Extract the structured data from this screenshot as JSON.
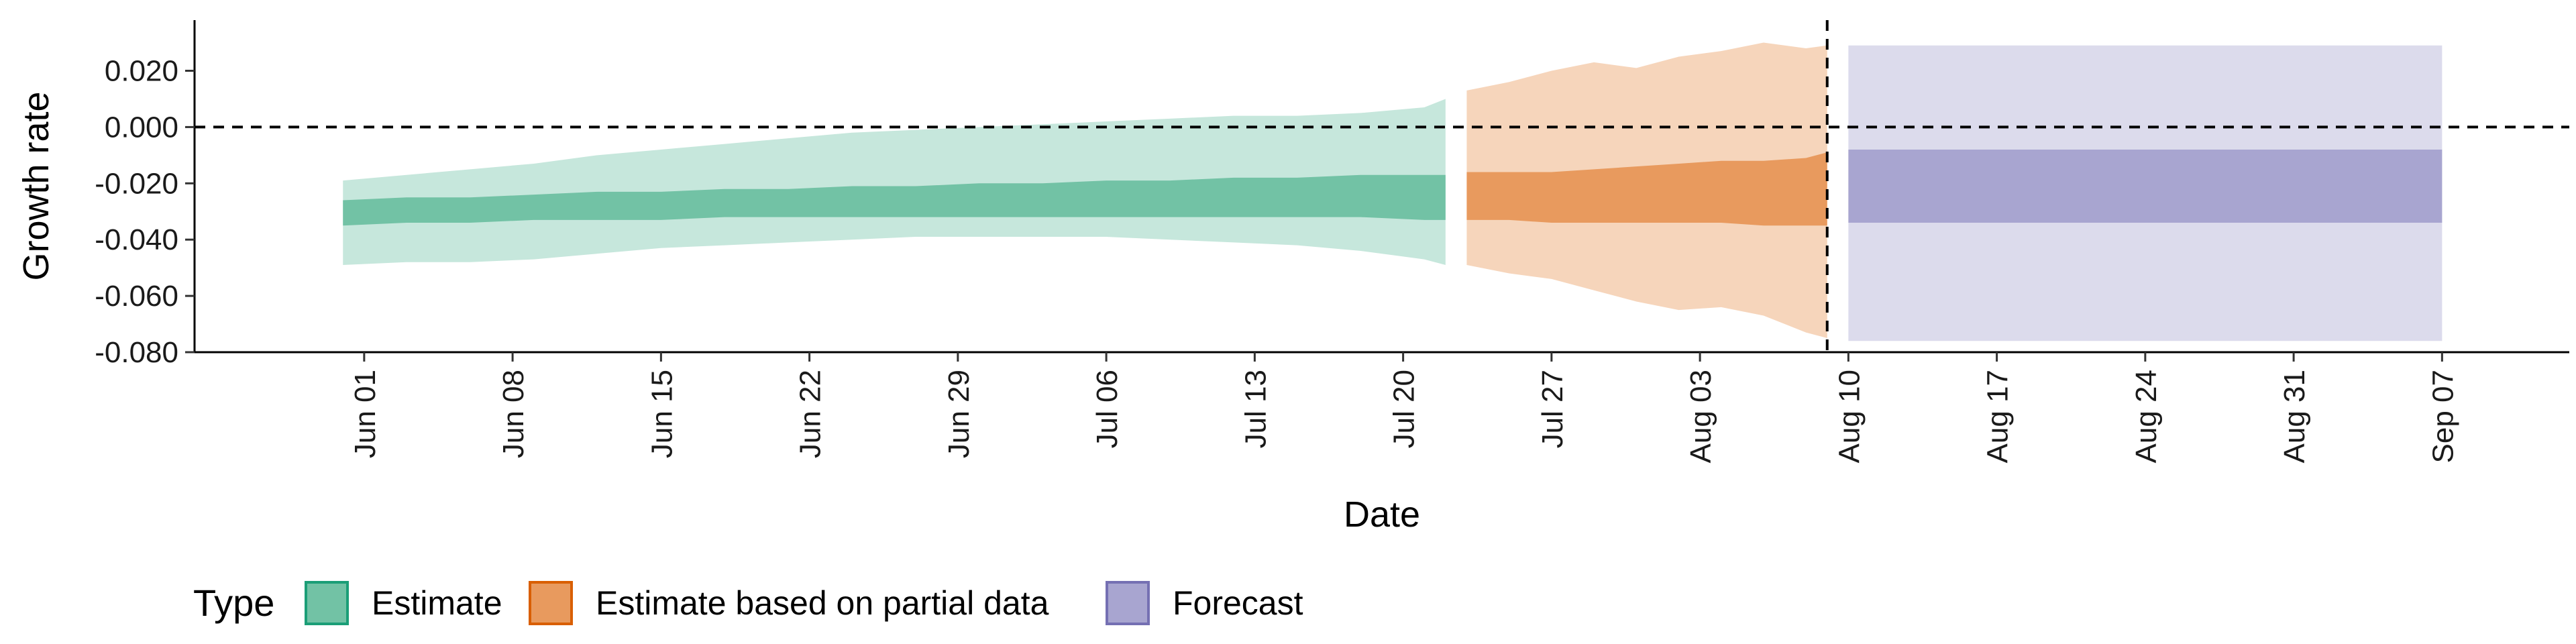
{
  "chart_data": {
    "type": "area",
    "title": "",
    "xlabel": "Date",
    "ylabel": "Growth rate",
    "xlim": [
      "2020-05-24",
      "2020-09-13"
    ],
    "ylim": [
      -0.08,
      0.038
    ],
    "x_ticks": [
      "2020-06-01",
      "2020-06-08",
      "2020-06-15",
      "2020-06-22",
      "2020-06-29",
      "2020-07-06",
      "2020-07-13",
      "2020-07-20",
      "2020-07-27",
      "2020-08-03",
      "2020-08-10",
      "2020-08-17",
      "2020-08-24",
      "2020-08-31",
      "2020-09-07"
    ],
    "x_tick_labels": [
      "Jun 01",
      "Jun 08",
      "Jun 15",
      "Jun 22",
      "Jun 29",
      "Jul 06",
      "Jul 13",
      "Jul 20",
      "Jul 27",
      "Aug 03",
      "Aug 10",
      "Aug 17",
      "Aug 24",
      "Aug 31",
      "Sep 07"
    ],
    "y_ticks": [
      0.02,
      0.0,
      -0.02,
      -0.04,
      -0.06,
      -0.08
    ],
    "y_tick_labels": [
      "0.020",
      "0.000",
      "-0.020",
      "-0.040",
      "-0.060",
      "-0.080"
    ],
    "reference_lines": [
      {
        "axis": "y",
        "value": 0.0,
        "style": "dashed"
      },
      {
        "axis": "x",
        "value": "2020-08-09",
        "style": "dashed"
      }
    ],
    "grid": false,
    "legend": {
      "title": "Type",
      "position": "bottom-left",
      "entries": [
        "Estimate",
        "Estimate based on partial data",
        "Forecast"
      ]
    },
    "series": [
      {
        "name": "Estimate",
        "outer_color": "#c6e7dc",
        "inner_color": "#72c2a5",
        "x": [
          "2020-05-31",
          "2020-06-03",
          "2020-06-06",
          "2020-06-09",
          "2020-06-12",
          "2020-06-15",
          "2020-06-18",
          "2020-06-21",
          "2020-06-24",
          "2020-06-27",
          "2020-06-30",
          "2020-07-03",
          "2020-07-06",
          "2020-07-09",
          "2020-07-12",
          "2020-07-15",
          "2020-07-18",
          "2020-07-21",
          "2020-07-22"
        ],
        "outer_low": [
          -0.049,
          -0.048,
          -0.048,
          -0.047,
          -0.045,
          -0.043,
          -0.042,
          -0.041,
          -0.04,
          -0.039,
          -0.039,
          -0.039,
          -0.039,
          -0.04,
          -0.041,
          -0.042,
          -0.044,
          -0.047,
          -0.049
        ],
        "inner_low": [
          -0.035,
          -0.034,
          -0.034,
          -0.033,
          -0.033,
          -0.033,
          -0.032,
          -0.032,
          -0.032,
          -0.032,
          -0.032,
          -0.032,
          -0.032,
          -0.032,
          -0.032,
          -0.032,
          -0.032,
          -0.033,
          -0.033
        ],
        "inner_high": [
          -0.026,
          -0.025,
          -0.025,
          -0.024,
          -0.023,
          -0.023,
          -0.022,
          -0.022,
          -0.021,
          -0.021,
          -0.02,
          -0.02,
          -0.019,
          -0.019,
          -0.018,
          -0.018,
          -0.017,
          -0.017,
          -0.017
        ],
        "outer_high": [
          -0.019,
          -0.017,
          -0.015,
          -0.013,
          -0.01,
          -0.008,
          -0.006,
          -0.004,
          -0.002,
          -0.001,
          0.0,
          0.001,
          0.002,
          0.003,
          0.004,
          0.004,
          0.005,
          0.007,
          0.01
        ]
      },
      {
        "name": "Estimate based on partial data",
        "outer_color": "#f6d5bb",
        "inner_color": "#e89a5e",
        "x": [
          "2020-07-23",
          "2020-07-25",
          "2020-07-27",
          "2020-07-29",
          "2020-07-31",
          "2020-08-02",
          "2020-08-04",
          "2020-08-06",
          "2020-08-08",
          "2020-08-09"
        ],
        "outer_low": [
          -0.049,
          -0.052,
          -0.054,
          -0.058,
          -0.062,
          -0.065,
          -0.064,
          -0.067,
          -0.073,
          -0.075
        ],
        "inner_low": [
          -0.033,
          -0.033,
          -0.034,
          -0.034,
          -0.034,
          -0.034,
          -0.034,
          -0.035,
          -0.035,
          -0.035
        ],
        "inner_high": [
          -0.016,
          -0.016,
          -0.016,
          -0.015,
          -0.014,
          -0.013,
          -0.012,
          -0.012,
          -0.011,
          -0.009
        ],
        "outer_high": [
          0.013,
          0.016,
          0.02,
          0.023,
          0.021,
          0.025,
          0.027,
          0.03,
          0.028,
          0.029
        ]
      },
      {
        "name": "Forecast",
        "outer_color": "#dcdbec",
        "inner_color": "#a8a5d0",
        "x": [
          "2020-08-10",
          "2020-09-07"
        ],
        "outer_low": [
          -0.076,
          -0.076
        ],
        "inner_low": [
          -0.034,
          -0.034
        ],
        "inner_high": [
          -0.008,
          -0.008
        ],
        "outer_high": [
          0.029,
          0.029
        ]
      }
    ],
    "legend_fill_colors": [
      "#72c2a5",
      "#e89a5e",
      "#a8a5d0"
    ],
    "legend_border_colors": [
      "#1b9e77",
      "#d95f02",
      "#7570b3"
    ]
  }
}
